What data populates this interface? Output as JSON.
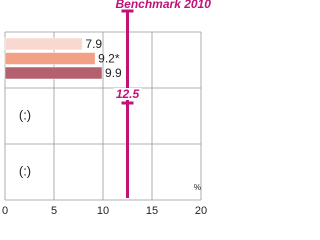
{
  "chart_data": {
    "type": "hbar",
    "categories": [
      null,
      "(:)",
      "(:)"
    ],
    "series": [
      {
        "color": "#f8d8cf",
        "values": [
          7.9,
          null,
          null
        ]
      },
      {
        "color": "#f2a185",
        "values": [
          9.2,
          null,
          null
        ],
        "value_labels": [
          "9.2*",
          null,
          null
        ]
      },
      {
        "color": "#b3606f",
        "values": [
          9.9,
          null,
          null
        ]
      }
    ],
    "xlim": [
      0,
      20
    ],
    "xticks": [
      0,
      5,
      10,
      15,
      20
    ],
    "x_unit": "%",
    "grid": true,
    "benchmark": {
      "value": 12.5,
      "label": "Benchmark 2010",
      "color": "#c0137a"
    }
  }
}
